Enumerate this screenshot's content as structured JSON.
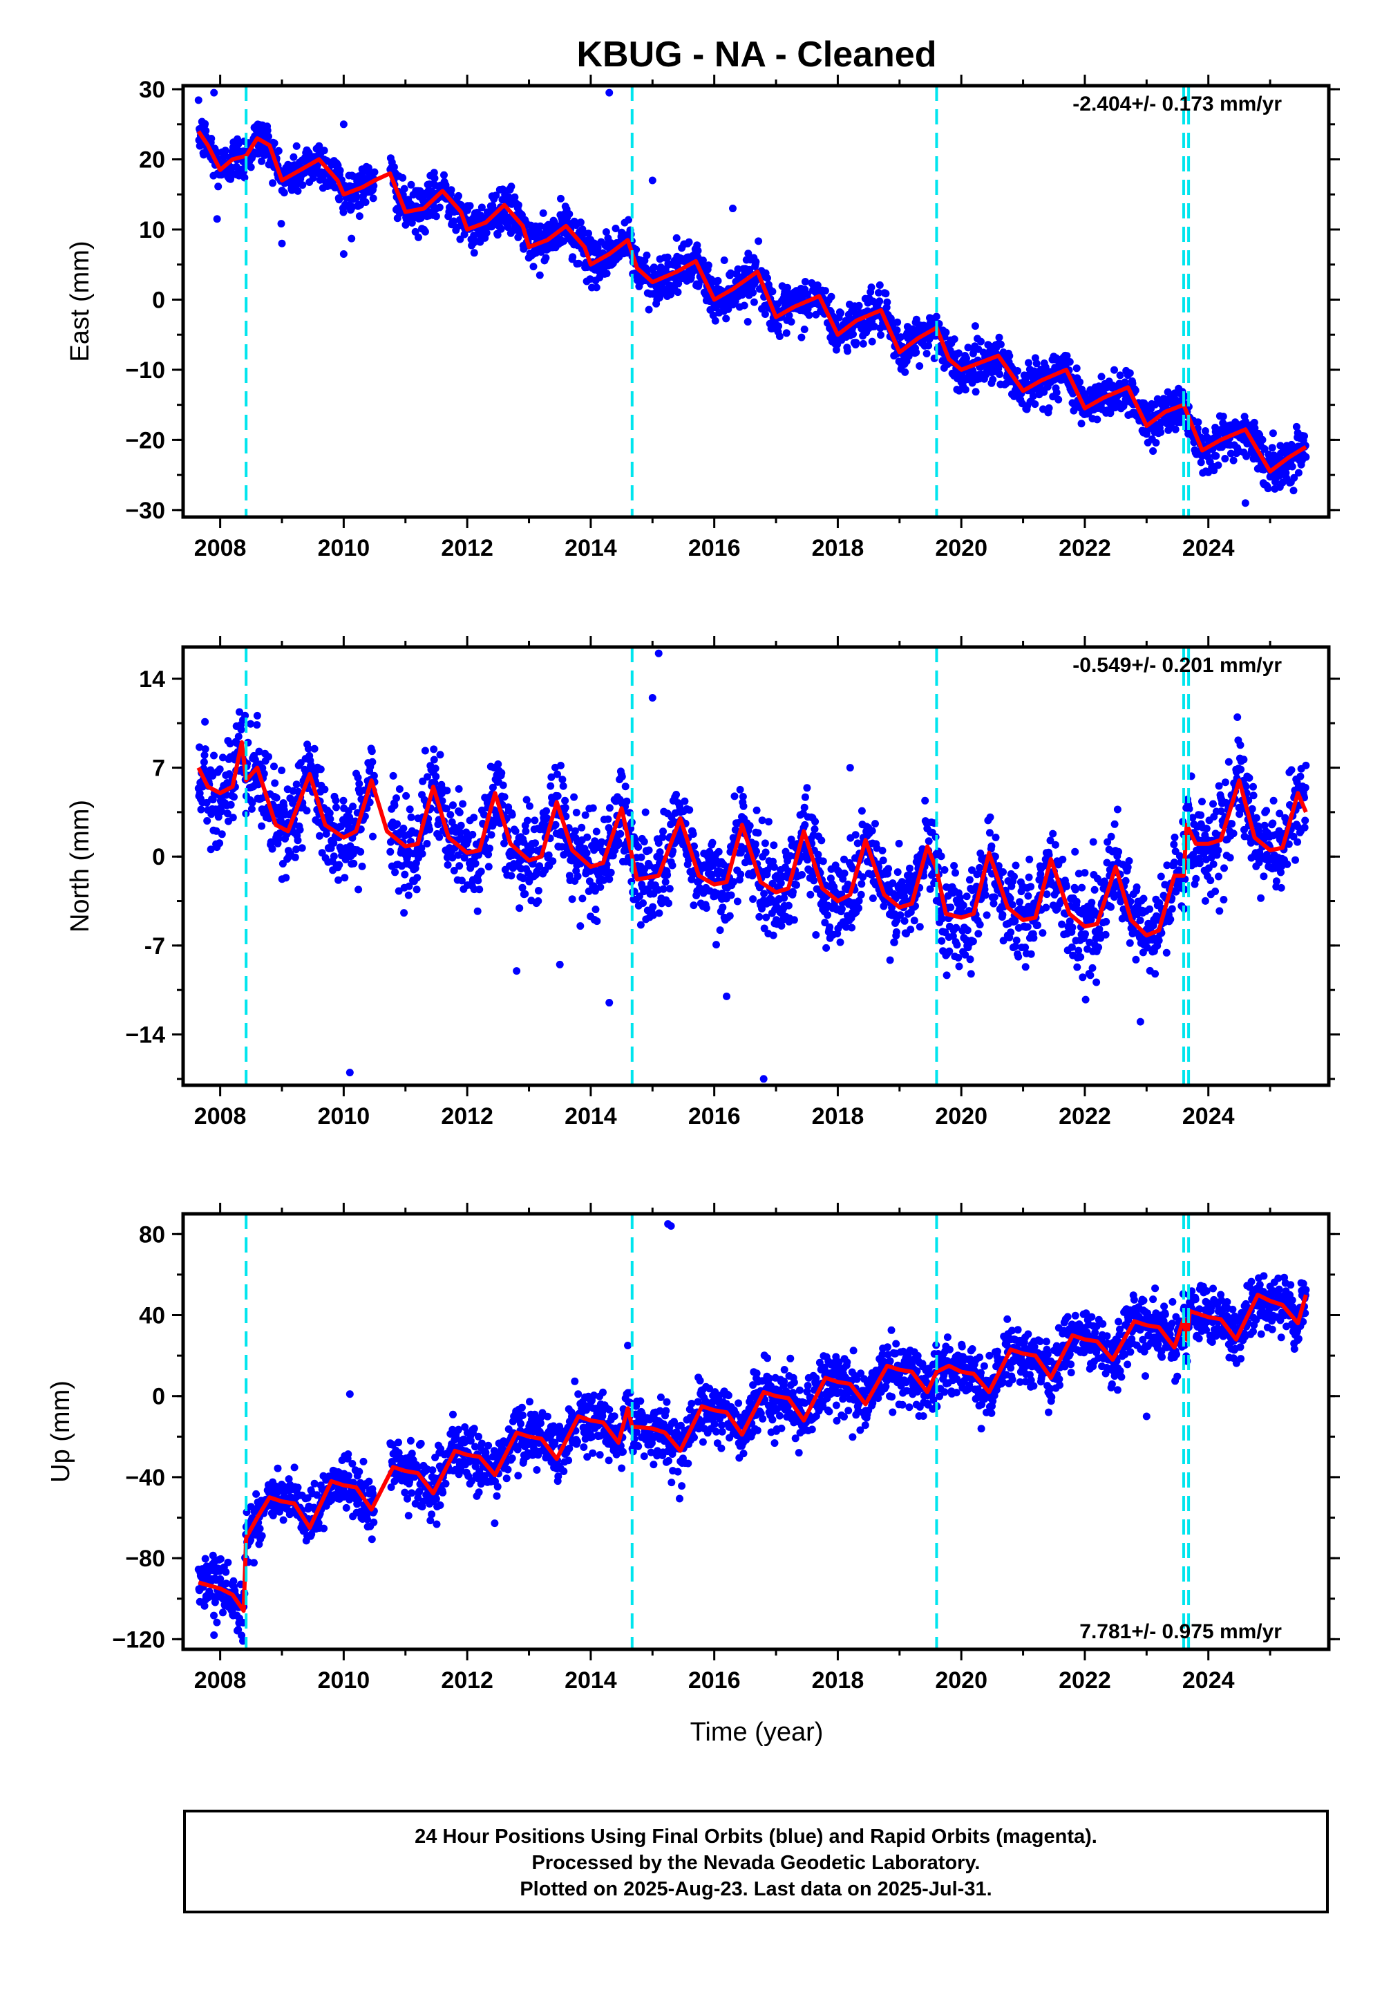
{
  "title": "KBUG  - NA - Cleaned",
  "xlabel": "Time (year)",
  "footer": {
    "line1": "24 Hour Positions Using Final Orbits (blue) and Rapid Orbits (magenta).",
    "line2": "Processed by the Nevada Geodetic Laboratory.",
    "line3": "Plotted on 2025-Aug-23. Last data on 2025-Jul-31."
  },
  "colors": {
    "points": "#0000ff",
    "model": "#ff0000",
    "steps": "#00e5ee",
    "frame": "#000000"
  },
  "chart_data": [
    {
      "type": "scatter",
      "name": "east",
      "ylabel": "East (mm)",
      "rate_label": "-2.404+/- 0.173 mm/yr",
      "rate_position": "top-right",
      "xlim": [
        2007.4,
        2025.95
      ],
      "ylim": [
        -31,
        30.5
      ],
      "xticks": [
        2008,
        2010,
        2012,
        2014,
        2016,
        2018,
        2020,
        2022,
        2024
      ],
      "yticks": [
        30,
        20,
        10,
        0,
        -10,
        -20,
        -30
      ],
      "ytick_labels": [
        "30",
        "20",
        "10",
        "0",
        "−10",
        "−20",
        "−30"
      ],
      "steps": [
        2008.42,
        2014.67,
        2019.6,
        2023.6,
        2023.68
      ],
      "trend": {
        "t0": 2016.7,
        "y0": 0.5,
        "rate": -2.404,
        "amp": 2.3,
        "phase": 0.25,
        "noise": 1.6,
        "start": 2007.65,
        "end": 2025.58,
        "gap": [
          2010.5,
          2010.75
        ]
      },
      "model_pts": [
        [
          2007.65,
          24
        ],
        [
          2007.8,
          22
        ],
        [
          2008.0,
          18.5
        ],
        [
          2008.2,
          20
        ],
        [
          2008.42,
          20.5
        ],
        [
          2008.6,
          23
        ],
        [
          2008.8,
          22
        ],
        [
          2009.0,
          17
        ],
        [
          2009.3,
          18.5
        ],
        [
          2009.6,
          20
        ],
        [
          2009.9,
          17
        ],
        [
          2010.0,
          15
        ],
        [
          2010.3,
          16
        ],
        [
          2010.5,
          17
        ],
        [
          2010.75,
          18
        ],
        [
          2011.0,
          12.5
        ],
        [
          2011.3,
          13
        ],
        [
          2011.6,
          15.5
        ],
        [
          2011.9,
          12.5
        ],
        [
          2012.0,
          10
        ],
        [
          2012.3,
          11
        ],
        [
          2012.6,
          13.5
        ],
        [
          2012.9,
          10.5
        ],
        [
          2013.0,
          7.5
        ],
        [
          2013.3,
          8.5
        ],
        [
          2013.6,
          10.5
        ],
        [
          2013.9,
          7.5
        ],
        [
          2014.0,
          5
        ],
        [
          2014.3,
          6.5
        ],
        [
          2014.6,
          8.5
        ],
        [
          2014.75,
          4.5
        ],
        [
          2015.0,
          2.5
        ],
        [
          2015.4,
          4
        ],
        [
          2015.7,
          5.5
        ],
        [
          2016.0,
          0
        ],
        [
          2016.3,
          1.5
        ],
        [
          2016.7,
          4
        ],
        [
          2017.0,
          -2.5
        ],
        [
          2017.3,
          -1
        ],
        [
          2017.7,
          0.5
        ],
        [
          2018.0,
          -5
        ],
        [
          2018.3,
          -3
        ],
        [
          2018.7,
          -1.5
        ],
        [
          2019.0,
          -7.5
        ],
        [
          2019.3,
          -5.5
        ],
        [
          2019.6,
          -4
        ],
        [
          2019.8,
          -8.5
        ],
        [
          2020.0,
          -10
        ],
        [
          2020.3,
          -9
        ],
        [
          2020.6,
          -8
        ],
        [
          2021.0,
          -13
        ],
        [
          2021.3,
          -11.5
        ],
        [
          2021.7,
          -10
        ],
        [
          2022.0,
          -15.5
        ],
        [
          2022.3,
          -14
        ],
        [
          2022.7,
          -12.5
        ],
        [
          2023.0,
          -18
        ],
        [
          2023.3,
          -16
        ],
        [
          2023.6,
          -15
        ],
        [
          2023.9,
          -21.5
        ],
        [
          2024.2,
          -20
        ],
        [
          2024.6,
          -18.5
        ],
        [
          2025.0,
          -24.5
        ],
        [
          2025.3,
          -22.5
        ],
        [
          2025.58,
          -21
        ]
      ],
      "outliers": [
        [
          2007.9,
          29.5
        ],
        [
          2010.0,
          25
        ],
        [
          2014.3,
          29.5
        ],
        [
          2015.0,
          17
        ],
        [
          2007.95,
          11.5
        ],
        [
          2009.0,
          8
        ],
        [
          2010.0,
          6.5
        ],
        [
          2016.3,
          13
        ],
        [
          2024.6,
          -29
        ]
      ]
    },
    {
      "type": "scatter",
      "name": "north",
      "ylabel": "North (mm)",
      "rate_label": "-0.549+/- 0.201 mm/yr",
      "rate_position": "top-right",
      "xlim": [
        2007.4,
        2025.95
      ],
      "ylim": [
        -18,
        16.5
      ],
      "xticks": [
        2008,
        2010,
        2012,
        2014,
        2016,
        2018,
        2020,
        2022,
        2024
      ],
      "yticks": [
        14,
        7,
        0,
        -7,
        -14
      ],
      "ytick_labels": [
        "14",
        "7",
        "0",
        "-7",
        "−14"
      ],
      "steps": [
        2008.42,
        2014.67,
        2019.6,
        2023.6,
        2023.68
      ],
      "trend": {
        "t0": 2016.7,
        "y0": -0.5,
        "rate": -0.549,
        "amp": 2.3,
        "phase": 0.4,
        "noise": 1.8,
        "start": 2007.65,
        "end": 2025.58,
        "gap": [
          2010.5,
          2010.75
        ]
      },
      "model_pts": [
        [
          2007.65,
          7
        ],
        [
          2007.8,
          5.5
        ],
        [
          2008.0,
          5
        ],
        [
          2008.2,
          5.5
        ],
        [
          2008.35,
          9
        ],
        [
          2008.42,
          6
        ],
        [
          2008.6,
          7
        ],
        [
          2008.9,
          2.5
        ],
        [
          2009.1,
          2
        ],
        [
          2009.45,
          6.5
        ],
        [
          2009.7,
          2.5
        ],
        [
          2010.0,
          1.5
        ],
        [
          2010.2,
          2
        ],
        [
          2010.45,
          6
        ],
        [
          2010.7,
          2
        ],
        [
          2011.0,
          0.8
        ],
        [
          2011.2,
          1
        ],
        [
          2011.45,
          5.5
        ],
        [
          2011.7,
          1.5
        ],
        [
          2012.0,
          0.3
        ],
        [
          2012.2,
          0.5
        ],
        [
          2012.45,
          5
        ],
        [
          2012.7,
          1
        ],
        [
          2013.0,
          -0.3
        ],
        [
          2013.2,
          0
        ],
        [
          2013.45,
          4.3
        ],
        [
          2013.7,
          0.5
        ],
        [
          2014.0,
          -0.8
        ],
        [
          2014.2,
          -0.5
        ],
        [
          2014.5,
          3.8
        ],
        [
          2014.75,
          -1.8
        ],
        [
          2015.1,
          -1.5
        ],
        [
          2015.45,
          3
        ],
        [
          2015.75,
          -1.5
        ],
        [
          2016.0,
          -2.2
        ],
        [
          2016.2,
          -2
        ],
        [
          2016.45,
          2.5
        ],
        [
          2016.75,
          -2
        ],
        [
          2017.0,
          -2.8
        ],
        [
          2017.2,
          -2.5
        ],
        [
          2017.45,
          2
        ],
        [
          2017.75,
          -2.5
        ],
        [
          2018.0,
          -3.5
        ],
        [
          2018.2,
          -3
        ],
        [
          2018.45,
          1.3
        ],
        [
          2018.75,
          -3
        ],
        [
          2019.0,
          -4
        ],
        [
          2019.2,
          -3.7
        ],
        [
          2019.45,
          0.8
        ],
        [
          2019.6,
          -1
        ],
        [
          2019.75,
          -4.5
        ],
        [
          2020.0,
          -4.8
        ],
        [
          2020.2,
          -4.5
        ],
        [
          2020.45,
          0.3
        ],
        [
          2020.75,
          -4
        ],
        [
          2021.0,
          -5
        ],
        [
          2021.2,
          -4.8
        ],
        [
          2021.45,
          -0.2
        ],
        [
          2021.75,
          -4.5
        ],
        [
          2022.0,
          -5.5
        ],
        [
          2022.2,
          -5.3
        ],
        [
          2022.5,
          -0.8
        ],
        [
          2022.75,
          -5
        ],
        [
          2023.0,
          -6.2
        ],
        [
          2023.2,
          -5.8
        ],
        [
          2023.45,
          -1.5
        ],
        [
          2023.6,
          -1.5
        ],
        [
          2023.65,
          2.5
        ],
        [
          2023.8,
          1
        ],
        [
          2024.0,
          1
        ],
        [
          2024.2,
          1.3
        ],
        [
          2024.5,
          6
        ],
        [
          2024.75,
          1.5
        ],
        [
          2025.0,
          0.5
        ],
        [
          2025.2,
          0.7
        ],
        [
          2025.45,
          5
        ],
        [
          2025.58,
          3.5
        ]
      ],
      "outliers": [
        [
          2015.1,
          16
        ],
        [
          2010.1,
          -17
        ],
        [
          2016.8,
          -17.5
        ],
        [
          2014.3,
          -11.5
        ],
        [
          2022.9,
          -13
        ],
        [
          2015.0,
          12.5
        ],
        [
          2016.2,
          -11
        ],
        [
          2012.8,
          -9
        ],
        [
          2018.2,
          7
        ],
        [
          2013.5,
          -8.5
        ]
      ]
    },
    {
      "type": "scatter",
      "name": "up",
      "ylabel": "Up (mm)",
      "rate_label": "7.781+/- 0.975 mm/yr",
      "rate_position": "bottom-right",
      "xlim": [
        2007.4,
        2025.95
      ],
      "ylim": [
        -125,
        90
      ],
      "xticks": [
        2008,
        2010,
        2012,
        2014,
        2016,
        2018,
        2020,
        2022,
        2024
      ],
      "yticks": [
        80,
        40,
        0,
        -40,
        -80,
        -120
      ],
      "ytick_labels": [
        "80",
        "40",
        "0",
        "−40",
        "−80",
        "−120"
      ],
      "steps": [
        2008.42,
        2014.67,
        2019.6,
        2023.6,
        2023.68
      ],
      "trend": {
        "t0": 2016.7,
        "y0": -8,
        "rate": 7.781,
        "amp": 10,
        "phase": 0.15,
        "noise": 7,
        "start": 2007.65,
        "end": 2025.58,
        "gap": [
          2010.5,
          2010.75
        ]
      },
      "model_pts": [
        [
          2007.65,
          -92
        ],
        [
          2008.0,
          -95
        ],
        [
          2008.2,
          -98
        ],
        [
          2008.38,
          -106
        ],
        [
          2008.42,
          -70
        ],
        [
          2008.6,
          -60
        ],
        [
          2008.8,
          -50
        ],
        [
          2009.0,
          -52
        ],
        [
          2009.2,
          -53
        ],
        [
          2009.45,
          -65
        ],
        [
          2009.8,
          -42
        ],
        [
          2010.0,
          -44
        ],
        [
          2010.2,
          -45
        ],
        [
          2010.45,
          -56
        ],
        [
          2010.8,
          -35
        ],
        [
          2011.0,
          -37
        ],
        [
          2011.2,
          -38
        ],
        [
          2011.45,
          -48
        ],
        [
          2011.8,
          -27
        ],
        [
          2012.0,
          -29
        ],
        [
          2012.2,
          -30
        ],
        [
          2012.45,
          -39
        ],
        [
          2012.8,
          -18
        ],
        [
          2013.0,
          -20
        ],
        [
          2013.2,
          -21
        ],
        [
          2013.45,
          -31
        ],
        [
          2013.8,
          -10
        ],
        [
          2014.0,
          -12
        ],
        [
          2014.2,
          -13
        ],
        [
          2014.45,
          -23
        ],
        [
          2014.6,
          -6
        ],
        [
          2014.67,
          -15
        ],
        [
          2015.0,
          -16
        ],
        [
          2015.2,
          -18
        ],
        [
          2015.45,
          -27
        ],
        [
          2015.8,
          -5
        ],
        [
          2016.0,
          -7
        ],
        [
          2016.2,
          -8
        ],
        [
          2016.45,
          -19
        ],
        [
          2016.8,
          2
        ],
        [
          2017.0,
          0
        ],
        [
          2017.2,
          -1
        ],
        [
          2017.45,
          -12
        ],
        [
          2017.8,
          9
        ],
        [
          2018.0,
          7
        ],
        [
          2018.2,
          6
        ],
        [
          2018.45,
          -4
        ],
        [
          2018.8,
          15
        ],
        [
          2019.0,
          13
        ],
        [
          2019.2,
          12
        ],
        [
          2019.45,
          2
        ],
        [
          2019.6,
          12
        ],
        [
          2019.8,
          15
        ],
        [
          2020.0,
          12
        ],
        [
          2020.2,
          11
        ],
        [
          2020.45,
          2
        ],
        [
          2020.8,
          23
        ],
        [
          2021.0,
          21
        ],
        [
          2021.2,
          20
        ],
        [
          2021.45,
          9
        ],
        [
          2021.8,
          30
        ],
        [
          2022.0,
          28
        ],
        [
          2022.2,
          27
        ],
        [
          2022.45,
          18
        ],
        [
          2022.8,
          37
        ],
        [
          2023.0,
          35
        ],
        [
          2023.2,
          34
        ],
        [
          2023.45,
          24
        ],
        [
          2023.6,
          38
        ],
        [
          2023.65,
          28
        ],
        [
          2023.7,
          42
        ],
        [
          2024.0,
          39
        ],
        [
          2024.2,
          38
        ],
        [
          2024.45,
          28
        ],
        [
          2024.8,
          50
        ],
        [
          2025.0,
          47
        ],
        [
          2025.2,
          45
        ],
        [
          2025.45,
          36
        ],
        [
          2025.58,
          50
        ]
      ],
      "outliers": [
        [
          2015.25,
          85
        ],
        [
          2015.3,
          84
        ],
        [
          2010.1,
          1
        ],
        [
          2007.9,
          -118
        ],
        [
          2023.0,
          -10
        ],
        [
          2014.6,
          25
        ]
      ]
    }
  ]
}
